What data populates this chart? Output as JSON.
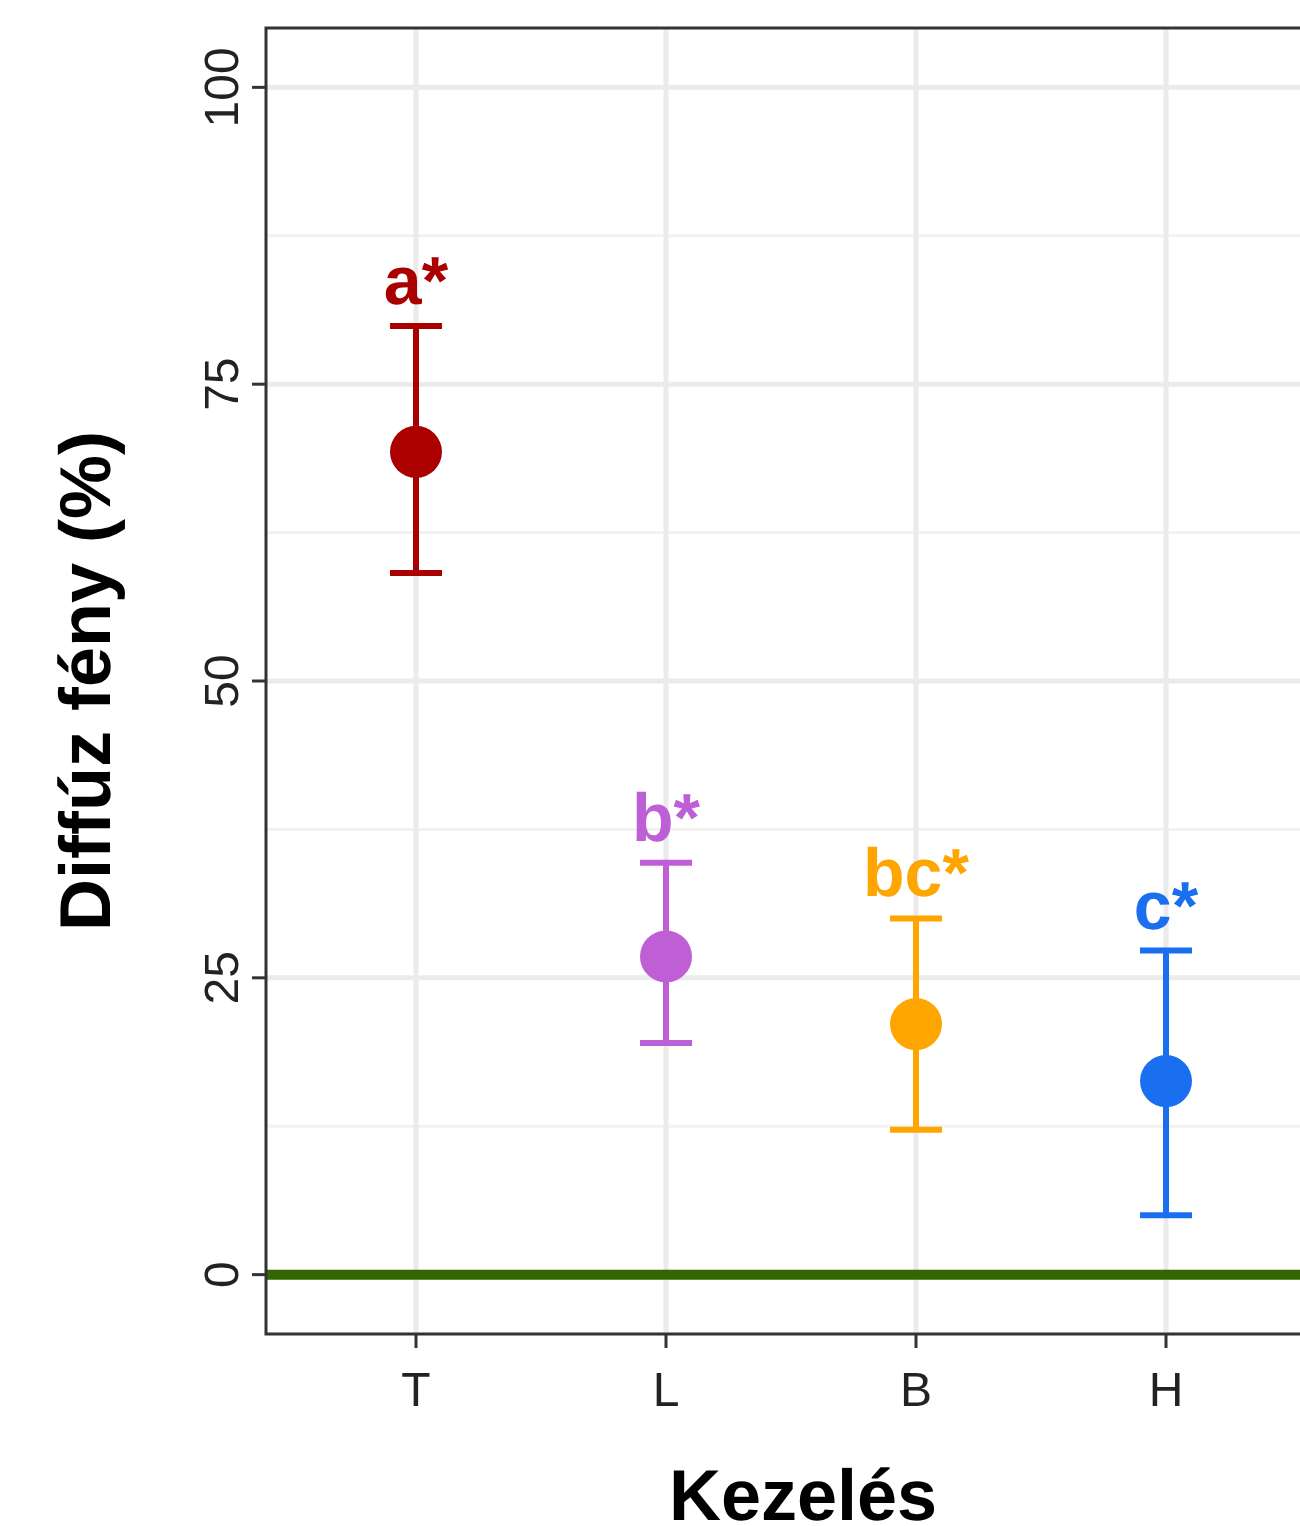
{
  "chart_data": {
    "type": "scatter",
    "xlabel": "Kezelés",
    "ylabel": "Diffúz fény (%)",
    "categories": [
      "T",
      "L",
      "B",
      "H"
    ],
    "values": [
      69.3,
      26.8,
      21.1,
      16.3
    ],
    "errors": [
      [
        59.1,
        79.9
      ],
      [
        19.5,
        34.7
      ],
      [
        12.2,
        30.0
      ],
      [
        5.0,
        27.3
      ]
    ],
    "colors": [
      "#aa0000",
      "#bf5fd6",
      "#ffa500",
      "#1a6ef0"
    ],
    "ylim": [
      -5,
      105
    ],
    "yticks": [
      0,
      25,
      50,
      75,
      100
    ],
    "grid": true,
    "marker": "circle",
    "ref_lines": [
      {
        "axis": "y",
        "value": 0,
        "color": "#336600"
      }
    ],
    "annotations": [
      "a*",
      "b*",
      "bc*",
      "c*"
    ]
  }
}
